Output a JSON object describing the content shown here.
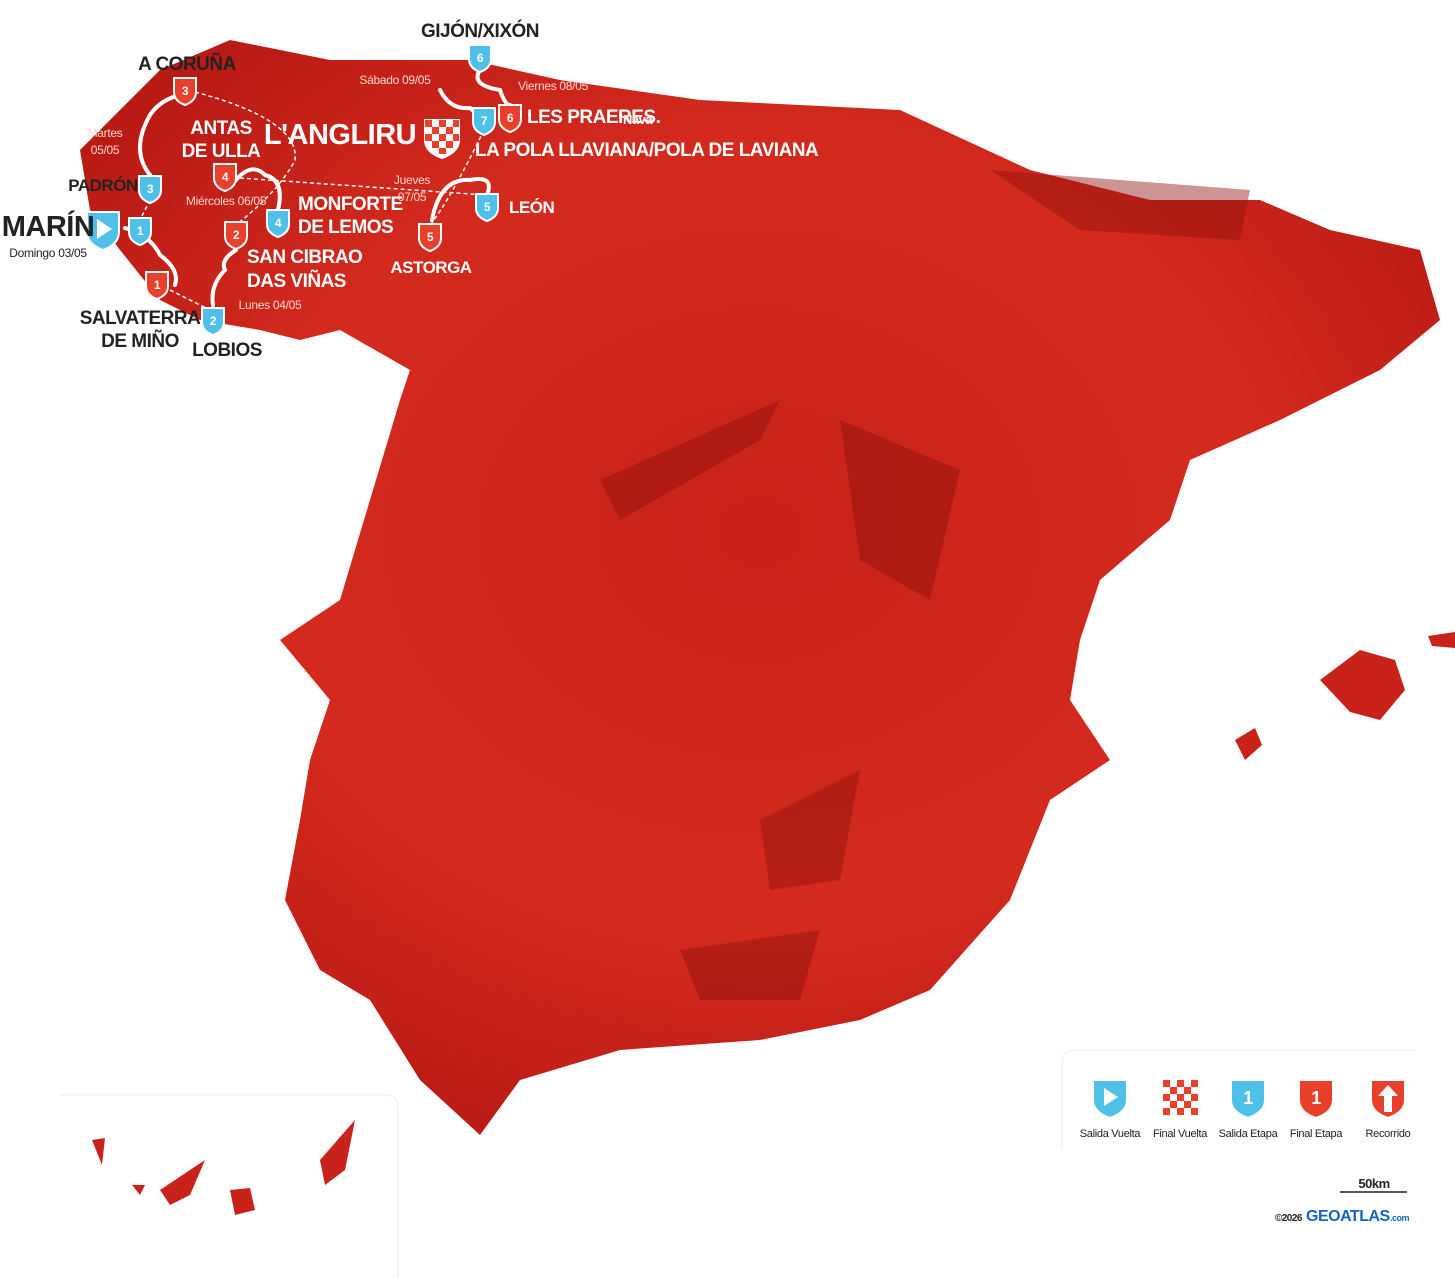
{
  "places": [
    "GIJÓN/XIXÓN",
    "A CORUÑA",
    "ANTAS",
    "DE ULLA",
    "L'ANGLIRU",
    "LES PRAERES.",
    "Nava",
    "LA POLA LLAVIANA/POLA DE LAVIANA",
    "PADRÓN",
    "MONFORTE",
    "DE LEMOS",
    "LEÓN",
    "MARÍN",
    "SAN CIBRAO",
    "DAS VIÑAS",
    "ASTORGA",
    "SALVATERRA",
    "DE MIÑO",
    "LOBIOS"
  ],
  "dates": [
    "Sábado 09/05",
    "Viernes 08/05",
    "Martes",
    "05/05",
    "Miércoles 06/05",
    "Jueves",
    "07/05",
    "Domingo 03/05",
    "Lunes 04/05"
  ],
  "stage_starts": [
    1,
    2,
    3,
    4,
    5,
    6,
    7
  ],
  "stage_finishes": [
    1,
    2,
    3,
    4,
    5,
    6
  ],
  "legend": [
    {
      "label": "Salida Vuelta"
    },
    {
      "label": "Final Vuelta"
    },
    {
      "label": "Salida Etapa",
      "number": 1
    },
    {
      "label": "Final Etapa",
      "number": 1
    },
    {
      "label": "Recorrido"
    }
  ],
  "scale": "50km",
  "copyright": "©2026",
  "brand": "GEOATLAS",
  "brand_suffix": ".com"
}
